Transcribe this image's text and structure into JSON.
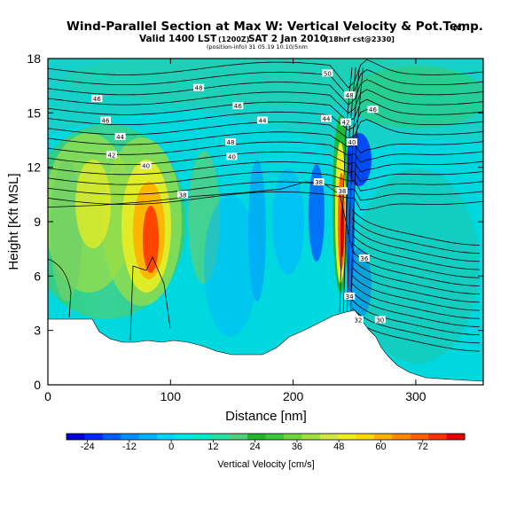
{
  "title": {
    "main": "Wind-Parallel Section at Max W: Vertical Velocity & Pot.Temp.",
    "copyright": "(C)",
    "valid_line": "Valid 1400 LST",
    "valid_z": "(1200Z)",
    "valid_date": "SAT 2 Jan 2010",
    "run": "[18hrf cst@2330]",
    "coords": "(position-info)  31 05.19 10.10/5nm"
  },
  "chart_data": {
    "type": "heatmap",
    "title": "Wind-Parallel Section at Max W: Vertical Velocity & Pot.Temp.",
    "xlabel": "Distance [nm]",
    "ylabel": "Height [Kft MSL]",
    "xlim": [
      0,
      355
    ],
    "ylim": [
      0,
      18
    ],
    "xticks": [
      "0",
      "100",
      "200",
      "300"
    ],
    "yticks": [
      "0",
      "3",
      "6",
      "9",
      "12",
      "15",
      "18"
    ],
    "colorbar": {
      "label": "Vertical Velocity [cm/s]",
      "ticks": [
        "-24",
        "-12",
        "0",
        "12",
        "24",
        "36",
        "48",
        "60",
        "72"
      ],
      "range": [
        -30,
        84
      ],
      "colors": [
        "#0000d8",
        "#0028ff",
        "#005cff",
        "#0090ff",
        "#00b4ff",
        "#00d8ff",
        "#00e8e8",
        "#00ecc8",
        "#28e0a0",
        "#50d078",
        "#20b828",
        "#38c838",
        "#6cd838",
        "#a0e040",
        "#d0e840",
        "#f0ee20",
        "#ffd800",
        "#ffb000",
        "#ff8800",
        "#ff6000",
        "#ff3000",
        "#e80000"
      ]
    },
    "contour_labels": [
      {
        "text": "50",
        "x": 228,
        "y": 17.2
      },
      {
        "text": "48",
        "x": 123,
        "y": 16.4
      },
      {
        "text": "46",
        "x": 40,
        "y": 15.8
      },
      {
        "text": "46",
        "x": 155,
        "y": 15.4
      },
      {
        "text": "46",
        "x": 265,
        "y": 15.2
      },
      {
        "text": "46",
        "x": 47,
        "y": 14.6
      },
      {
        "text": "44",
        "x": 175,
        "y": 14.6
      },
      {
        "text": "44",
        "x": 227,
        "y": 14.7
      },
      {
        "text": "44",
        "x": 59,
        "y": 13.7
      },
      {
        "text": "48",
        "x": 149,
        "y": 13.4
      },
      {
        "text": "42",
        "x": 52,
        "y": 12.7
      },
      {
        "text": "40",
        "x": 150,
        "y": 12.6
      },
      {
        "text": "40",
        "x": 80,
        "y": 12.1
      },
      {
        "text": "38",
        "x": 110,
        "y": 10.5
      },
      {
        "text": "38",
        "x": 221,
        "y": 11.2
      },
      {
        "text": "38",
        "x": 240,
        "y": 10.7
      },
      {
        "text": "48",
        "x": 246,
        "y": 16.0
      },
      {
        "text": "42",
        "x": 243,
        "y": 14.5
      },
      {
        "text": "40",
        "x": 248,
        "y": 13.4
      },
      {
        "text": "36",
        "x": 258,
        "y": 7.0
      },
      {
        "text": "34",
        "x": 246,
        "y": 4.9
      },
      {
        "text": "32",
        "x": 253,
        "y": 3.6
      },
      {
        "text": "30",
        "x": 271,
        "y": 3.6
      }
    ]
  }
}
